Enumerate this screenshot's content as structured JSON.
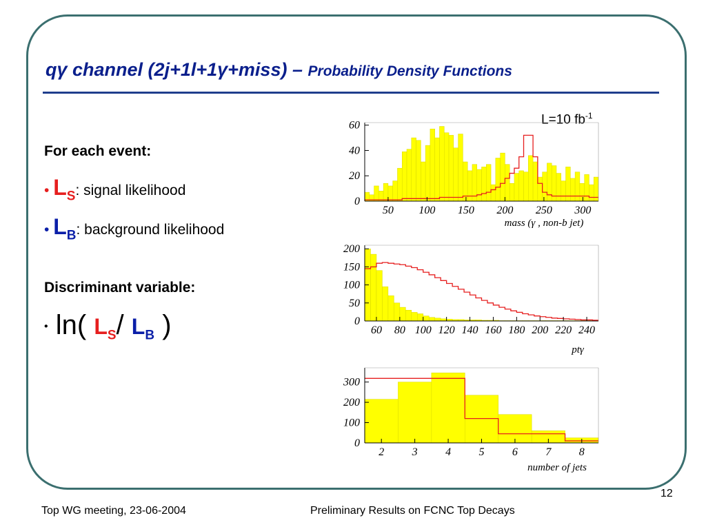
{
  "slide": {
    "title_prefix": "qγ",
    "title_main": "channel (2j+1l+1γ+miss)",
    "title_dash": "–",
    "title_sub": "Probability Density Functions",
    "lumi": "L=10 fb",
    "lumi_exp": "-1",
    "for_each_event": "For each event:",
    "bullet1_L": "L",
    "bullet1_sub": "S",
    "bullet1_text": ": signal likelihood",
    "bullet2_L": "L",
    "bullet2_sub": "B",
    "bullet2_text": ": background likelihood",
    "discriminant": "Discriminant variable:",
    "ln": "ln(",
    "ln_close": ")",
    "slash": "/",
    "page_number": "12",
    "footer_left": "Top WG meeting, 23-06-2004",
    "footer_center": "Preliminary Results on FCNC Top Decays",
    "colors": {
      "title": "#0a1f8c",
      "signal": "#e61e1e",
      "background_fill": "#ffff00",
      "frame": "#3b6f6f"
    }
  },
  "chart_data": [
    {
      "type": "bar",
      "xlabel": "mass (γ , non-b jet)",
      "xlim": [
        20,
        320
      ],
      "ylim": [
        0,
        62
      ],
      "xticks": [
        50,
        100,
        150,
        200,
        250,
        300
      ],
      "yticks": [
        0,
        20,
        40,
        60
      ],
      "bin_width": 6,
      "x_start": 20,
      "series": [
        {
          "values": [
            7,
            5,
            12,
            8,
            14,
            12,
            16,
            26,
            39,
            41,
            50,
            48,
            31,
            44,
            57,
            50,
            59,
            54,
            52,
            42,
            53,
            31,
            24,
            29,
            25,
            27,
            29,
            13,
            34,
            38,
            29,
            14,
            22,
            24,
            23,
            36,
            31,
            19,
            23,
            30,
            28,
            22,
            16,
            27,
            18,
            23,
            14,
            21,
            13,
            19,
            12,
            12,
            10,
            7,
            9,
            8
          ]
        },
        {
          "values": [
            1,
            1,
            1,
            1,
            1,
            1,
            1,
            1,
            2,
            2,
            2,
            2,
            2,
            2,
            2,
            2,
            3,
            3,
            3,
            3,
            3,
            4,
            4,
            4,
            5,
            6,
            7,
            9,
            11,
            14,
            18,
            22,
            26,
            35,
            52,
            52,
            35,
            14,
            7,
            5,
            4,
            4,
            4,
            4,
            4,
            4,
            4,
            4,
            3,
            3,
            3,
            3,
            3,
            3,
            2,
            2
          ]
        }
      ]
    },
    {
      "type": "bar",
      "xlabel": "ptγ",
      "xlim": [
        50,
        250
      ],
      "ylim": [
        0,
        210
      ],
      "xticks": [
        60,
        80,
        100,
        120,
        140,
        160,
        180,
        200,
        220,
        240
      ],
      "yticks": [
        0,
        50,
        100,
        150,
        200
      ],
      "bin_width": 5,
      "x_start": 50,
      "series": [
        {
          "values": [
            200,
            185,
            140,
            95,
            70,
            50,
            38,
            30,
            24,
            20,
            14,
            10,
            8,
            6,
            5,
            4,
            4,
            3,
            3,
            3,
            2,
            2,
            2,
            1,
            1,
            1,
            1,
            1,
            1,
            1,
            1,
            1,
            1,
            1,
            1,
            1,
            1,
            1,
            1,
            1
          ]
        },
        {
          "values": [
            145,
            150,
            160,
            162,
            160,
            158,
            156,
            152,
            148,
            142,
            135,
            128,
            120,
            112,
            104,
            96,
            88,
            80,
            72,
            64,
            57,
            50,
            44,
            38,
            33,
            28,
            24,
            20,
            17,
            14,
            12,
            10,
            8,
            7,
            6,
            5,
            4,
            3,
            3,
            2
          ]
        }
      ]
    },
    {
      "type": "bar",
      "xlabel": "number of jets",
      "xlim": [
        1.5,
        8.5
      ],
      "ylim": [
        0,
        370
      ],
      "xticks": [
        2,
        3,
        4,
        5,
        6,
        7,
        8
      ],
      "yticks": [
        0,
        100,
        200,
        300
      ],
      "categories": [
        2,
        3,
        4,
        5,
        6,
        7,
        8
      ],
      "series": [
        {
          "values": [
            215,
            300,
            345,
            235,
            140,
            60,
            25
          ]
        },
        {
          "values": [
            318,
            318,
            318,
            120,
            45,
            45,
            10
          ]
        }
      ]
    }
  ]
}
